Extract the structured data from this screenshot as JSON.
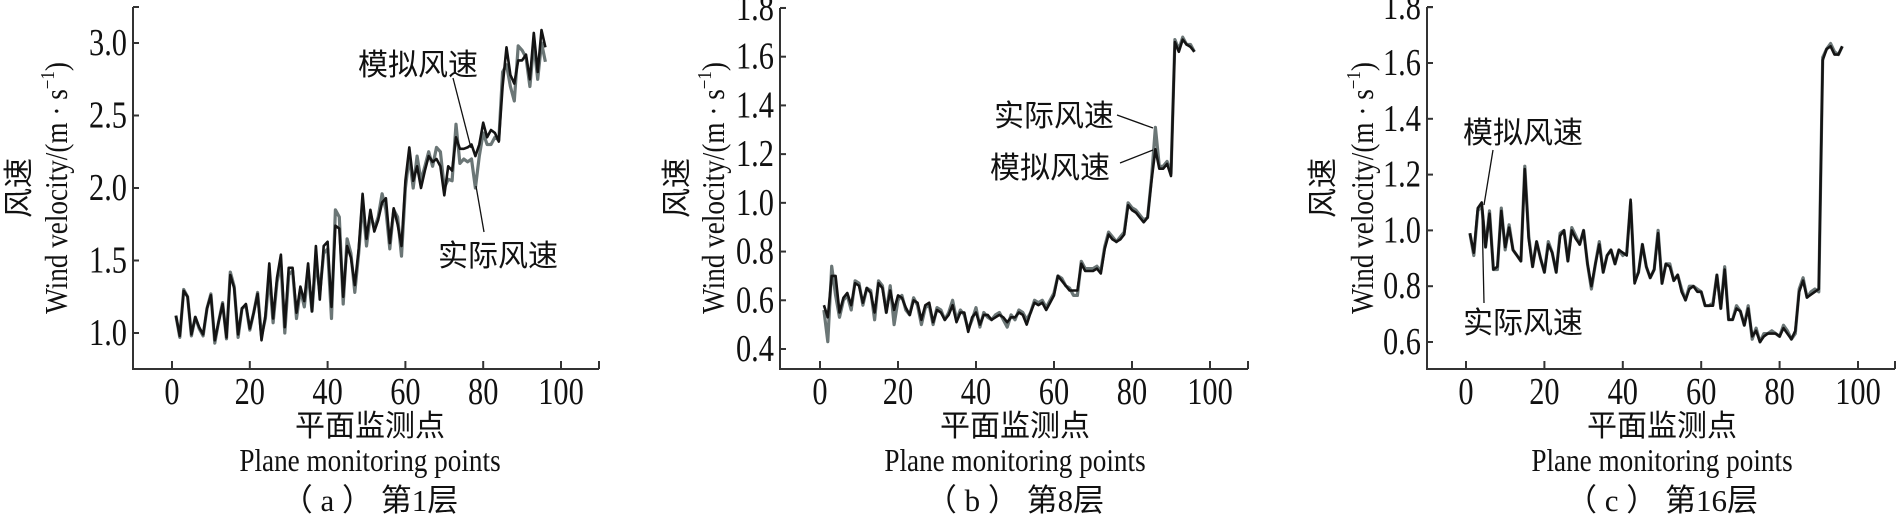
{
  "legend": {
    "simulated": "模拟风速",
    "measured": "实际风速"
  },
  "colors": {
    "simulated": "#141414",
    "measured": "#6b7676"
  },
  "chart_data": [
    {
      "type": "line",
      "caption": "（ a ） 第1层",
      "xlabel_cn": "平面监测点",
      "xlabel_en": "Plane monitoring points",
      "ylabel_cn": "风速",
      "ylabel_en": "Wind velocity/(m · s",
      "ylabel_sup": "−1",
      "ylabel_close": ")",
      "xlim": [
        -10,
        110
      ],
      "ylim": [
        0.75,
        3.25
      ],
      "xticks": [
        0,
        20,
        40,
        60,
        80,
        100
      ],
      "xtick_labels": [
        "0",
        "20",
        "40",
        "60",
        "80",
        "100"
      ],
      "yticks": [
        1.0,
        1.5,
        2.0,
        2.5,
        3.0
      ],
      "ytick_labels": [
        "1.0",
        "1.5",
        "2.0",
        "2.5",
        "3.0"
      ],
      "grid": false,
      "series": [
        {
          "name": "实际风速",
          "values": [
            1.12,
            0.97,
            1.3,
            1.25,
            0.98,
            1.11,
            1.03,
            0.98,
            1.17,
            1.27,
            0.93,
            1.08,
            1.21,
            0.96,
            1.42,
            1.32,
            0.97,
            1.17,
            1.19,
            1.02,
            1.14,
            1.28,
            0.98,
            1.1,
            1.4,
            1.07,
            1.35,
            1.48,
            1.0,
            1.4,
            1.43,
            1.1,
            1.3,
            1.18,
            1.42,
            1.15,
            1.5,
            1.28,
            1.55,
            1.58,
            1.1,
            1.85,
            1.8,
            1.2,
            1.65,
            1.55,
            1.28,
            1.55,
            1.9,
            1.6,
            1.82,
            1.72,
            1.8,
            1.96,
            1.85,
            1.58,
            1.85,
            1.8,
            1.53,
            2.0,
            2.22,
            2.0,
            2.22,
            2.05,
            2.15,
            2.25,
            2.15,
            2.28,
            2.25,
            2.0,
            2.06,
            2.05,
            2.44,
            2.17,
            2.2,
            2.18,
            2.2,
            2.0,
            2.22,
            2.38,
            2.3,
            2.3,
            2.35,
            2.33,
            2.8,
            2.85,
            2.7,
            2.6,
            2.98,
            2.95,
            2.9,
            2.7,
            3.0,
            2.75,
            3.0,
            2.87
          ]
        },
        {
          "name": "模拟风速",
          "values": [
            1.12,
            0.98,
            1.29,
            1.25,
            0.99,
            1.11,
            1.04,
            0.99,
            1.17,
            1.26,
            0.95,
            1.08,
            1.2,
            0.97,
            1.4,
            1.31,
            0.99,
            1.17,
            1.2,
            1.03,
            1.14,
            1.27,
            0.95,
            1.12,
            1.48,
            1.1,
            1.38,
            1.54,
            1.04,
            1.45,
            1.45,
            1.14,
            1.32,
            1.22,
            1.48,
            1.15,
            1.6,
            1.23,
            1.6,
            1.63,
            1.18,
            1.74,
            1.72,
            1.25,
            1.6,
            1.52,
            1.33,
            1.58,
            1.96,
            1.65,
            1.85,
            1.7,
            1.78,
            1.9,
            1.93,
            1.62,
            1.86,
            1.75,
            1.6,
            2.05,
            2.28,
            2.05,
            2.15,
            2.0,
            2.12,
            2.22,
            2.18,
            2.2,
            2.15,
            1.95,
            2.15,
            2.12,
            2.35,
            2.27,
            2.27,
            2.28,
            2.3,
            2.22,
            2.3,
            2.45,
            2.35,
            2.4,
            2.38,
            2.32,
            2.7,
            2.97,
            2.78,
            2.72,
            2.88,
            2.88,
            2.92,
            2.75,
            3.07,
            2.8,
            3.09,
            2.97
          ]
        }
      ]
    },
    {
      "type": "line",
      "caption": "（ b ） 第8层",
      "xlabel_cn": "平面监测点",
      "xlabel_en": "Plane monitoring points",
      "ylabel_cn": "风速",
      "ylabel_en": "Wind velocity/(m · s",
      "ylabel_sup": "−1",
      "ylabel_close": ")",
      "xlim": [
        -10,
        110
      ],
      "ylim": [
        0.32,
        1.8
      ],
      "xticks": [
        0,
        20,
        40,
        60,
        80,
        100
      ],
      "xtick_labels": [
        "0",
        "20",
        "40",
        "60",
        "80",
        "100"
      ],
      "yticks": [
        0.4,
        0.6,
        0.8,
        1.0,
        1.2,
        1.4,
        1.6,
        1.8
      ],
      "ytick_labels": [
        "0.4",
        "0.6",
        "0.8",
        "1.0",
        "1.2",
        "1.4",
        "1.6",
        "1.8"
      ],
      "grid": false,
      "series": [
        {
          "name": "实际风速",
          "values": [
            0.56,
            0.43,
            0.74,
            0.62,
            0.53,
            0.6,
            0.62,
            0.56,
            0.68,
            0.67,
            0.58,
            0.65,
            0.64,
            0.52,
            0.68,
            0.66,
            0.55,
            0.66,
            0.5,
            0.6,
            0.62,
            0.56,
            0.54,
            0.61,
            0.58,
            0.5,
            0.57,
            0.58,
            0.5,
            0.57,
            0.56,
            0.52,
            0.55,
            0.6,
            0.52,
            0.56,
            0.54,
            0.48,
            0.52,
            0.57,
            0.49,
            0.55,
            0.53,
            0.52,
            0.54,
            0.55,
            0.52,
            0.49,
            0.54,
            0.52,
            0.56,
            0.55,
            0.52,
            0.55,
            0.6,
            0.59,
            0.6,
            0.57,
            0.6,
            0.63,
            0.7,
            0.69,
            0.66,
            0.65,
            0.62,
            0.62,
            0.76,
            0.73,
            0.73,
            0.73,
            0.74,
            0.72,
            0.82,
            0.88,
            0.86,
            0.84,
            0.86,
            0.88,
            1.0,
            0.98,
            0.97,
            0.95,
            0.93,
            0.94,
            1.1,
            1.31,
            1.15,
            1.15,
            1.17,
            1.12,
            1.67,
            1.63,
            1.68,
            1.65,
            1.65,
            1.62
          ]
        },
        {
          "name": "模拟风速",
          "values": [
            0.58,
            0.53,
            0.7,
            0.7,
            0.55,
            0.61,
            0.63,
            0.58,
            0.67,
            0.66,
            0.59,
            0.65,
            0.63,
            0.55,
            0.67,
            0.65,
            0.55,
            0.64,
            0.56,
            0.62,
            0.61,
            0.57,
            0.54,
            0.6,
            0.59,
            0.52,
            0.58,
            0.59,
            0.51,
            0.56,
            0.55,
            0.52,
            0.54,
            0.58,
            0.51,
            0.55,
            0.55,
            0.47,
            0.53,
            0.55,
            0.5,
            0.54,
            0.54,
            0.52,
            0.53,
            0.54,
            0.53,
            0.51,
            0.53,
            0.53,
            0.55,
            0.54,
            0.5,
            0.55,
            0.59,
            0.58,
            0.59,
            0.56,
            0.59,
            0.62,
            0.7,
            0.68,
            0.66,
            0.64,
            0.64,
            0.64,
            0.75,
            0.72,
            0.72,
            0.72,
            0.73,
            0.71,
            0.81,
            0.87,
            0.85,
            0.84,
            0.85,
            0.87,
            0.99,
            0.97,
            0.96,
            0.94,
            0.92,
            0.94,
            1.09,
            1.22,
            1.14,
            1.14,
            1.16,
            1.11,
            1.66,
            1.62,
            1.67,
            1.65,
            1.64,
            1.62
          ]
        }
      ]
    },
    {
      "type": "line",
      "caption": "（ c ） 第16层",
      "xlabel_cn": "平面监测点",
      "xlabel_en": "Plane monitoring points",
      "ylabel_cn": "风速",
      "ylabel_en": "Wind velocity/(m · s",
      "ylabel_sup": "−1",
      "ylabel_close": ")",
      "xlim": [
        -10,
        110
      ],
      "ylim": [
        0.5,
        1.8
      ],
      "xticks": [
        0,
        20,
        40,
        60,
        80,
        100
      ],
      "xtick_labels": [
        "0",
        "20",
        "40",
        "60",
        "80",
        "100"
      ],
      "yticks": [
        0.6,
        0.8,
        1.0,
        1.2,
        1.4,
        1.6,
        1.8
      ],
      "ytick_labels": [
        "0.6",
        "0.8",
        "1.0",
        "1.2",
        "1.4",
        "1.6",
        "1.8"
      ],
      "grid": false,
      "series": [
        {
          "name": "实际风速",
          "values": [
            0.99,
            0.91,
            1.07,
            1.09,
            0.94,
            1.07,
            0.86,
            0.86,
            1.08,
            0.93,
            1.02,
            0.93,
            0.91,
            0.89,
            1.23,
            0.98,
            0.87,
            0.96,
            0.9,
            0.85,
            0.96,
            0.92,
            0.85,
            0.99,
            1.0,
            0.89,
            1.01,
            0.98,
            0.95,
            1.0,
            0.88,
            0.79,
            0.88,
            0.96,
            0.85,
            0.91,
            0.93,
            0.88,
            0.93,
            0.91,
            0.92,
            1.1,
            0.82,
            0.85,
            0.95,
            0.87,
            0.83,
            0.86,
            1.0,
            0.81,
            0.88,
            0.88,
            0.82,
            0.84,
            0.79,
            0.75,
            0.8,
            0.8,
            0.79,
            0.78,
            0.73,
            0.73,
            0.74,
            0.84,
            0.72,
            0.87,
            0.68,
            0.68,
            0.73,
            0.71,
            0.66,
            0.73,
            0.61,
            0.65,
            0.6,
            0.63,
            0.63,
            0.64,
            0.63,
            0.62,
            0.66,
            0.64,
            0.61,
            0.63,
            0.79,
            0.83,
            0.76,
            0.78,
            0.79,
            0.78,
            1.62,
            1.65,
            1.67,
            1.64,
            1.63,
            1.66
          ]
        },
        {
          "name": "模拟风速",
          "values": [
            0.99,
            0.92,
            1.08,
            1.1,
            0.94,
            1.06,
            0.86,
            0.87,
            1.07,
            0.94,
            1.01,
            0.93,
            0.91,
            0.89,
            1.22,
            0.97,
            0.87,
            0.96,
            0.9,
            0.85,
            0.95,
            0.92,
            0.85,
            0.98,
            1.0,
            0.89,
            1.0,
            0.97,
            0.95,
            1.0,
            0.88,
            0.8,
            0.88,
            0.95,
            0.85,
            0.91,
            0.93,
            0.88,
            0.93,
            0.92,
            0.91,
            1.11,
            0.81,
            0.85,
            0.95,
            0.87,
            0.83,
            0.86,
            0.99,
            0.81,
            0.88,
            0.87,
            0.82,
            0.84,
            0.78,
            0.75,
            0.79,
            0.8,
            0.78,
            0.78,
            0.73,
            0.73,
            0.73,
            0.84,
            0.72,
            0.86,
            0.68,
            0.68,
            0.72,
            0.71,
            0.66,
            0.72,
            0.62,
            0.64,
            0.6,
            0.62,
            0.63,
            0.63,
            0.63,
            0.62,
            0.65,
            0.63,
            0.61,
            0.64,
            0.78,
            0.82,
            0.76,
            0.77,
            0.78,
            0.79,
            1.61,
            1.65,
            1.66,
            1.63,
            1.63,
            1.66
          ]
        }
      ]
    }
  ]
}
